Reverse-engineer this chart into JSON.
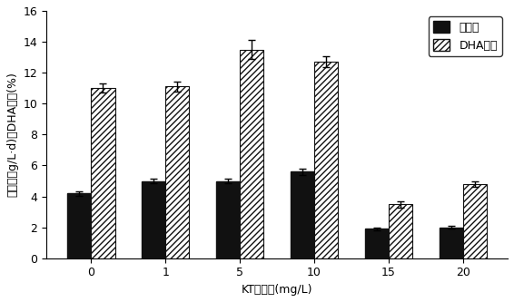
{
  "categories": [
    "0",
    "1",
    "5",
    "10",
    "15",
    "20"
  ],
  "xlabel": "KT添加量(mg/L)",
  "ylabel": "生物量（g/L·d)和DHA含量(%)",
  "biomass_values": [
    4.2,
    5.0,
    5.0,
    5.6,
    1.9,
    2.0
  ],
  "biomass_errors": [
    0.15,
    0.15,
    0.15,
    0.2,
    0.1,
    0.1
  ],
  "dha_values": [
    11.0,
    11.1,
    13.5,
    12.7,
    3.5,
    4.8
  ],
  "dha_errors": [
    0.3,
    0.35,
    0.6,
    0.35,
    0.2,
    0.2
  ],
  "ylim": [
    0,
    16
  ],
  "yticks": [
    0,
    2,
    4,
    6,
    8,
    10,
    12,
    14,
    16
  ],
  "bar_width": 0.32,
  "legend_biomass": "生物量",
  "legend_dha": "DHA含量",
  "biomass_color": "#111111",
  "dha_facecolor": "white",
  "dha_edgecolor": "#111111",
  "background_color": "#ffffff",
  "label_fontsize": 9,
  "tick_fontsize": 9,
  "legend_fontsize": 9
}
